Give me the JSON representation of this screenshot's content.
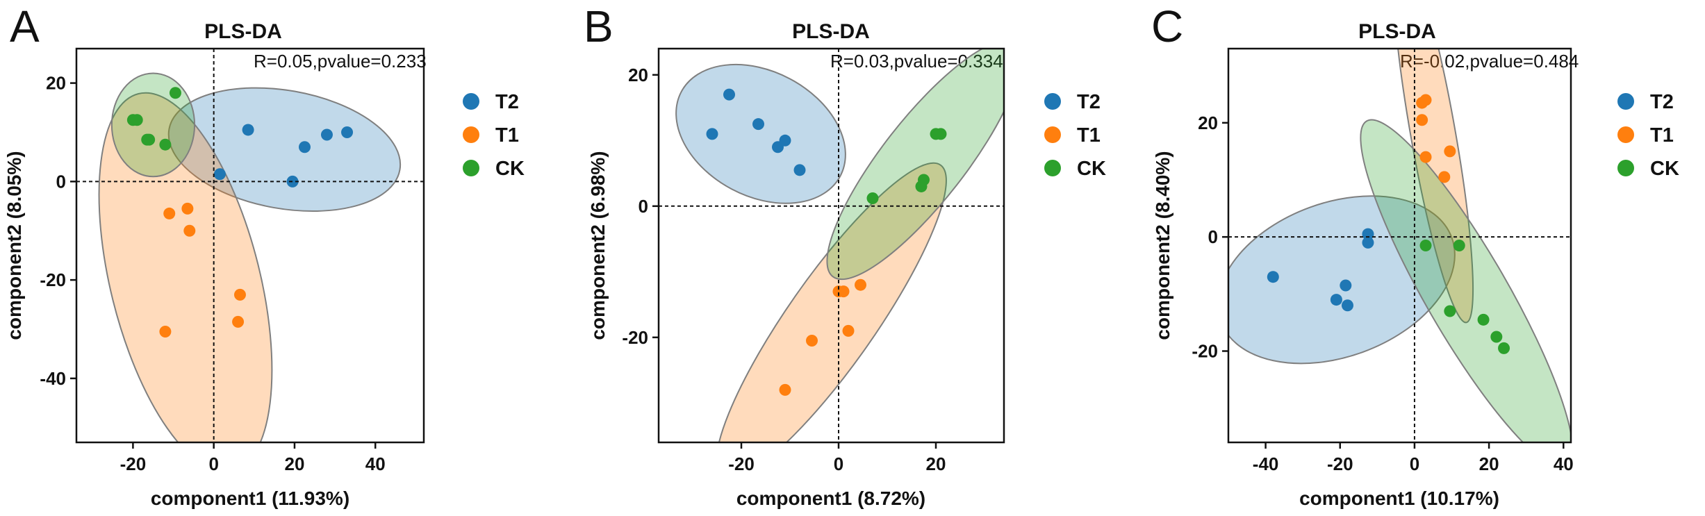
{
  "chart_data": [
    {
      "type": "scatter",
      "panel": "A",
      "title": "PLS-DA",
      "stat": "R=0.05,pvalue=0.233",
      "xlabel": "component1 (11.93%)",
      "ylabel": "component2 (8.05%)",
      "xlim": [
        -34,
        52
      ],
      "ylim": [
        -53,
        27
      ],
      "xticks": [
        -20,
        0,
        20,
        40
      ],
      "yticks": [
        20,
        0,
        -20,
        -40
      ],
      "series": [
        {
          "name": "T2",
          "color": "#1f77b4",
          "points": [
            [
              1.5,
              1.5
            ],
            [
              8.5,
              10.5
            ],
            [
              19.5,
              0
            ],
            [
              22.5,
              7
            ],
            [
              28,
              9.5
            ],
            [
              33,
              10
            ]
          ]
        },
        {
          "name": "T1",
          "color": "#ff7f0e",
          "points": [
            [
              -11,
              -6.5
            ],
            [
              -6.5,
              -5.5
            ],
            [
              -6,
              -10
            ],
            [
              6.5,
              -23
            ],
            [
              6,
              -28.5
            ],
            [
              -12,
              -30.5
            ]
          ]
        },
        {
          "name": "CK",
          "color": "#2ca02c",
          "points": [
            [
              -9.5,
              18
            ],
            [
              -20,
              12.5
            ],
            [
              -19,
              12.5
            ],
            [
              -16,
              8.5
            ],
            [
              -16.5,
              8.5
            ],
            [
              -12,
              7.5
            ]
          ]
        }
      ],
      "ellipses": [
        {
          "series": "T2",
          "cx": 17.5,
          "cy": 6.5,
          "rx": 58,
          "ry": 24,
          "angle": 10
        },
        {
          "series": "T1",
          "cx": -7,
          "cy": -20.5,
          "rx": 37,
          "ry": 79,
          "angle": -14
        },
        {
          "series": "CK",
          "cx": -15,
          "cy": 11.5,
          "rx": 20.5,
          "ry": 21,
          "angle": 0
        }
      ]
    },
    {
      "type": "scatter",
      "panel": "B",
      "title": "PLS-DA",
      "stat": "R=0.03,pvalue=0.334",
      "xlabel": "component1 (8.72%)",
      "ylabel": "component2 (6.98%)",
      "xlim": [
        -37,
        34
      ],
      "ylim": [
        -36,
        24
      ],
      "xticks": [
        -20,
        0,
        20
      ],
      "yticks": [
        20,
        0,
        -20
      ],
      "series": [
        {
          "name": "T2",
          "color": "#1f77b4",
          "points": [
            [
              -26,
              11
            ],
            [
              -22.5,
              17
            ],
            [
              -16.5,
              12.5
            ],
            [
              -12.5,
              9
            ],
            [
              -11,
              10
            ],
            [
              -8,
              5.5
            ]
          ]
        },
        {
          "name": "T1",
          "color": "#ff7f0e",
          "points": [
            [
              0,
              -13
            ],
            [
              1,
              -13
            ],
            [
              4.5,
              -12
            ],
            [
              2,
              -19
            ],
            [
              -5.5,
              -20.5
            ],
            [
              -11,
              -28
            ]
          ]
        },
        {
          "name": "CK",
          "color": "#2ca02c",
          "points": [
            [
              7,
              1.2
            ],
            [
              17,
              3
            ],
            [
              17.5,
              4
            ],
            [
              20,
              11
            ],
            [
              21,
              11
            ]
          ]
        }
      ],
      "ellipses": [
        {
          "series": "T2",
          "cx": -16,
          "cy": 11,
          "rx": 37,
          "ry": 19,
          "angle": 28
        },
        {
          "series": "T1",
          "cx": -1.5,
          "cy": -17.5,
          "rx": 18,
          "ry": 58,
          "angle": 35
        },
        {
          "series": "CK",
          "cx": 17.5,
          "cy": 7,
          "rx": 17,
          "ry": 45,
          "angle": 38
        }
      ]
    },
    {
      "type": "scatter",
      "panel": "C",
      "title": "PLS-DA",
      "stat": "R=-0.02,pvalue=0.484",
      "xlabel": "component1 (10.17%)",
      "ylabel": "component2 (8.40%)",
      "xlim": [
        -50,
        42
      ],
      "ylim": [
        -36,
        33
      ],
      "xticks": [
        -40,
        -20,
        0,
        20,
        40
      ],
      "yticks": [
        20,
        0,
        -20
      ],
      "series": [
        {
          "name": "T2",
          "color": "#1f77b4",
          "points": [
            [
              -38,
              -7
            ],
            [
              -21,
              -11
            ],
            [
              -18.5,
              -8.5
            ],
            [
              -18,
              -12
            ],
            [
              -12.5,
              0.5
            ],
            [
              -12.5,
              -1
            ]
          ]
        },
        {
          "name": "T1",
          "color": "#ff7f0e",
          "points": [
            [
              2,
              20.5
            ],
            [
              2,
              23.5
            ],
            [
              3,
              24
            ],
            [
              3,
              14
            ],
            [
              9.5,
              15
            ],
            [
              8,
              10.5
            ]
          ]
        },
        {
          "name": "CK",
          "color": "#2ca02c",
          "points": [
            [
              3,
              -1.5
            ],
            [
              12,
              -1.5
            ],
            [
              9.5,
              -13
            ],
            [
              18.5,
              -14.5
            ],
            [
              22,
              -17.5
            ],
            [
              24,
              -19.5
            ]
          ]
        }
      ],
      "ellipses": [
        {
          "series": "T2",
          "cx": -21,
          "cy": -7.5,
          "rx": 66,
          "ry": 27,
          "angle": -20
        },
        {
          "series": "T1",
          "cx": 5,
          "cy": 18,
          "rx": 12,
          "ry": 67,
          "angle": -10
        },
        {
          "series": "CK",
          "cx": 14,
          "cy": -10,
          "rx": 22,
          "ry": 70,
          "angle": -30
        }
      ]
    }
  ],
  "legend": [
    {
      "name": "T2",
      "color": "#1f77b4"
    },
    {
      "name": "T1",
      "color": "#ff7f0e"
    },
    {
      "name": "CK",
      "color": "#2ca02c"
    }
  ]
}
